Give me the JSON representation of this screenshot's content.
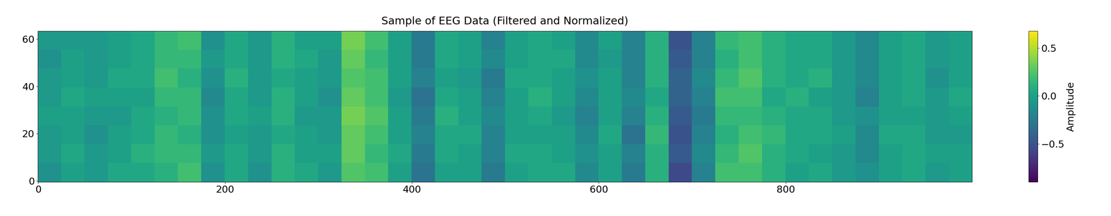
{
  "chart_data": {
    "type": "heatmap",
    "title": "Sample of EEG Data (Filtered and Normalized)",
    "color": "viridis",
    "xlim": [
      -0.5,
      999.5
    ],
    "xticks": [
      0,
      200,
      400,
      600,
      800
    ],
    "ylim": [
      -0.5,
      63.5
    ],
    "yticks": [
      0,
      20,
      40,
      60
    ],
    "cells": [
      [
        -0.1,
        0.0,
        -0.05,
        0.05,
        0.05,
        0.1,
        0.2,
        -0.1,
        0.05,
        -0.1,
        0.1,
        0.05,
        -0.05,
        0.25,
        0.2,
        0.0,
        -0.3,
        0.0,
        0.0,
        -0.25,
        0.0,
        0.05,
        0.05,
        -0.15,
        0.0,
        -0.25,
        0.1,
        -0.55,
        -0.2,
        0.2,
        0.2,
        0.1,
        0.0,
        0.05,
        -0.05,
        -0.1,
        0.0,
        0.05,
        -0.05,
        0.0
      ],
      [
        -0.05,
        0.05,
        -0.05,
        0.0,
        0.1,
        0.15,
        0.15,
        -0.05,
        0.05,
        -0.05,
        0.1,
        0.0,
        0.0,
        0.3,
        0.15,
        0.05,
        -0.25,
        0.05,
        0.0,
        -0.2,
        0.05,
        0.05,
        0.0,
        -0.1,
        0.0,
        -0.2,
        0.1,
        -0.45,
        -0.15,
        0.15,
        0.25,
        0.1,
        0.05,
        0.0,
        -0.05,
        -0.15,
        0.0,
        0.05,
        0.0,
        0.0
      ],
      [
        -0.05,
        0.0,
        -0.1,
        0.0,
        0.05,
        0.15,
        0.1,
        -0.1,
        0.0,
        -0.05,
        0.05,
        0.0,
        -0.05,
        0.3,
        0.2,
        0.0,
        -0.2,
        0.05,
        0.05,
        -0.2,
        0.0,
        0.0,
        0.0,
        -0.15,
        0.05,
        -0.3,
        0.15,
        -0.5,
        -0.2,
        0.1,
        0.2,
        0.15,
        0.05,
        0.05,
        0.0,
        -0.15,
        0.05,
        0.05,
        -0.05,
        -0.05
      ],
      [
        0.0,
        0.0,
        -0.05,
        -0.05,
        0.05,
        0.1,
        0.15,
        -0.1,
        0.05,
        0.0,
        0.1,
        -0.05,
        -0.05,
        0.35,
        0.25,
        0.0,
        -0.25,
        0.1,
        0.0,
        -0.15,
        0.0,
        0.05,
        -0.05,
        -0.2,
        0.0,
        -0.2,
        0.1,
        -0.45,
        -0.25,
        0.15,
        0.15,
        0.1,
        0.05,
        0.05,
        -0.05,
        -0.1,
        0.0,
        0.0,
        -0.05,
        0.0
      ],
      [
        -0.05,
        0.05,
        0.0,
        0.0,
        0.0,
        0.15,
        0.15,
        -0.15,
        0.05,
        -0.05,
        0.1,
        0.0,
        -0.1,
        0.3,
        0.2,
        -0.05,
        -0.3,
        0.05,
        0.0,
        -0.2,
        0.0,
        0.1,
        0.0,
        -0.15,
        0.0,
        -0.15,
        0.05,
        -0.4,
        -0.2,
        0.2,
        0.2,
        0.05,
        0.1,
        0.0,
        -0.05,
        -0.2,
        0.0,
        0.05,
        -0.05,
        0.05
      ],
      [
        -0.05,
        0.0,
        -0.05,
        0.05,
        0.05,
        0.2,
        0.1,
        -0.1,
        0.1,
        -0.05,
        0.05,
        0.0,
        -0.05,
        0.25,
        0.2,
        0.0,
        -0.2,
        0.0,
        -0.05,
        -0.25,
        0.05,
        0.05,
        0.0,
        -0.1,
        0.0,
        -0.2,
        0.1,
        -0.4,
        -0.15,
        0.15,
        0.25,
        0.1,
        0.05,
        0.1,
        -0.05,
        -0.15,
        0.0,
        0.05,
        -0.1,
        0.0
      ],
      [
        -0.1,
        0.0,
        -0.05,
        0.0,
        0.05,
        0.15,
        0.15,
        -0.05,
        0.05,
        -0.05,
        0.1,
        0.05,
        -0.05,
        0.3,
        0.15,
        0.0,
        -0.25,
        0.05,
        0.0,
        -0.15,
        0.0,
        0.05,
        0.05,
        -0.15,
        -0.05,
        -0.2,
        0.1,
        -0.45,
        -0.2,
        0.1,
        0.2,
        0.1,
        0.05,
        0.05,
        -0.05,
        -0.15,
        0.0,
        0.05,
        -0.05,
        0.0
      ],
      [
        -0.05,
        -0.05,
        -0.05,
        0.0,
        0.05,
        0.15,
        0.2,
        -0.1,
        0.05,
        -0.05,
        0.1,
        0.0,
        0.0,
        0.35,
        0.2,
        0.0,
        -0.25,
        0.05,
        0.0,
        -0.2,
        0.0,
        0.05,
        0.0,
        -0.15,
        0.0,
        -0.2,
        0.1,
        -0.5,
        -0.2,
        0.15,
        0.2,
        0.1,
        0.05,
        0.05,
        -0.05,
        -0.15,
        0.0,
        0.05,
        -0.05,
        0.0
      ]
    ],
    "colorbar": {
      "label": "Amplitude",
      "lim": [
        -0.9,
        0.68
      ],
      "ticks": [
        {
          "value": -0.5,
          "label": "−0.5"
        },
        {
          "value": 0,
          "label": "0.0"
        },
        {
          "value": 0.5,
          "label": "0.5"
        }
      ]
    }
  }
}
